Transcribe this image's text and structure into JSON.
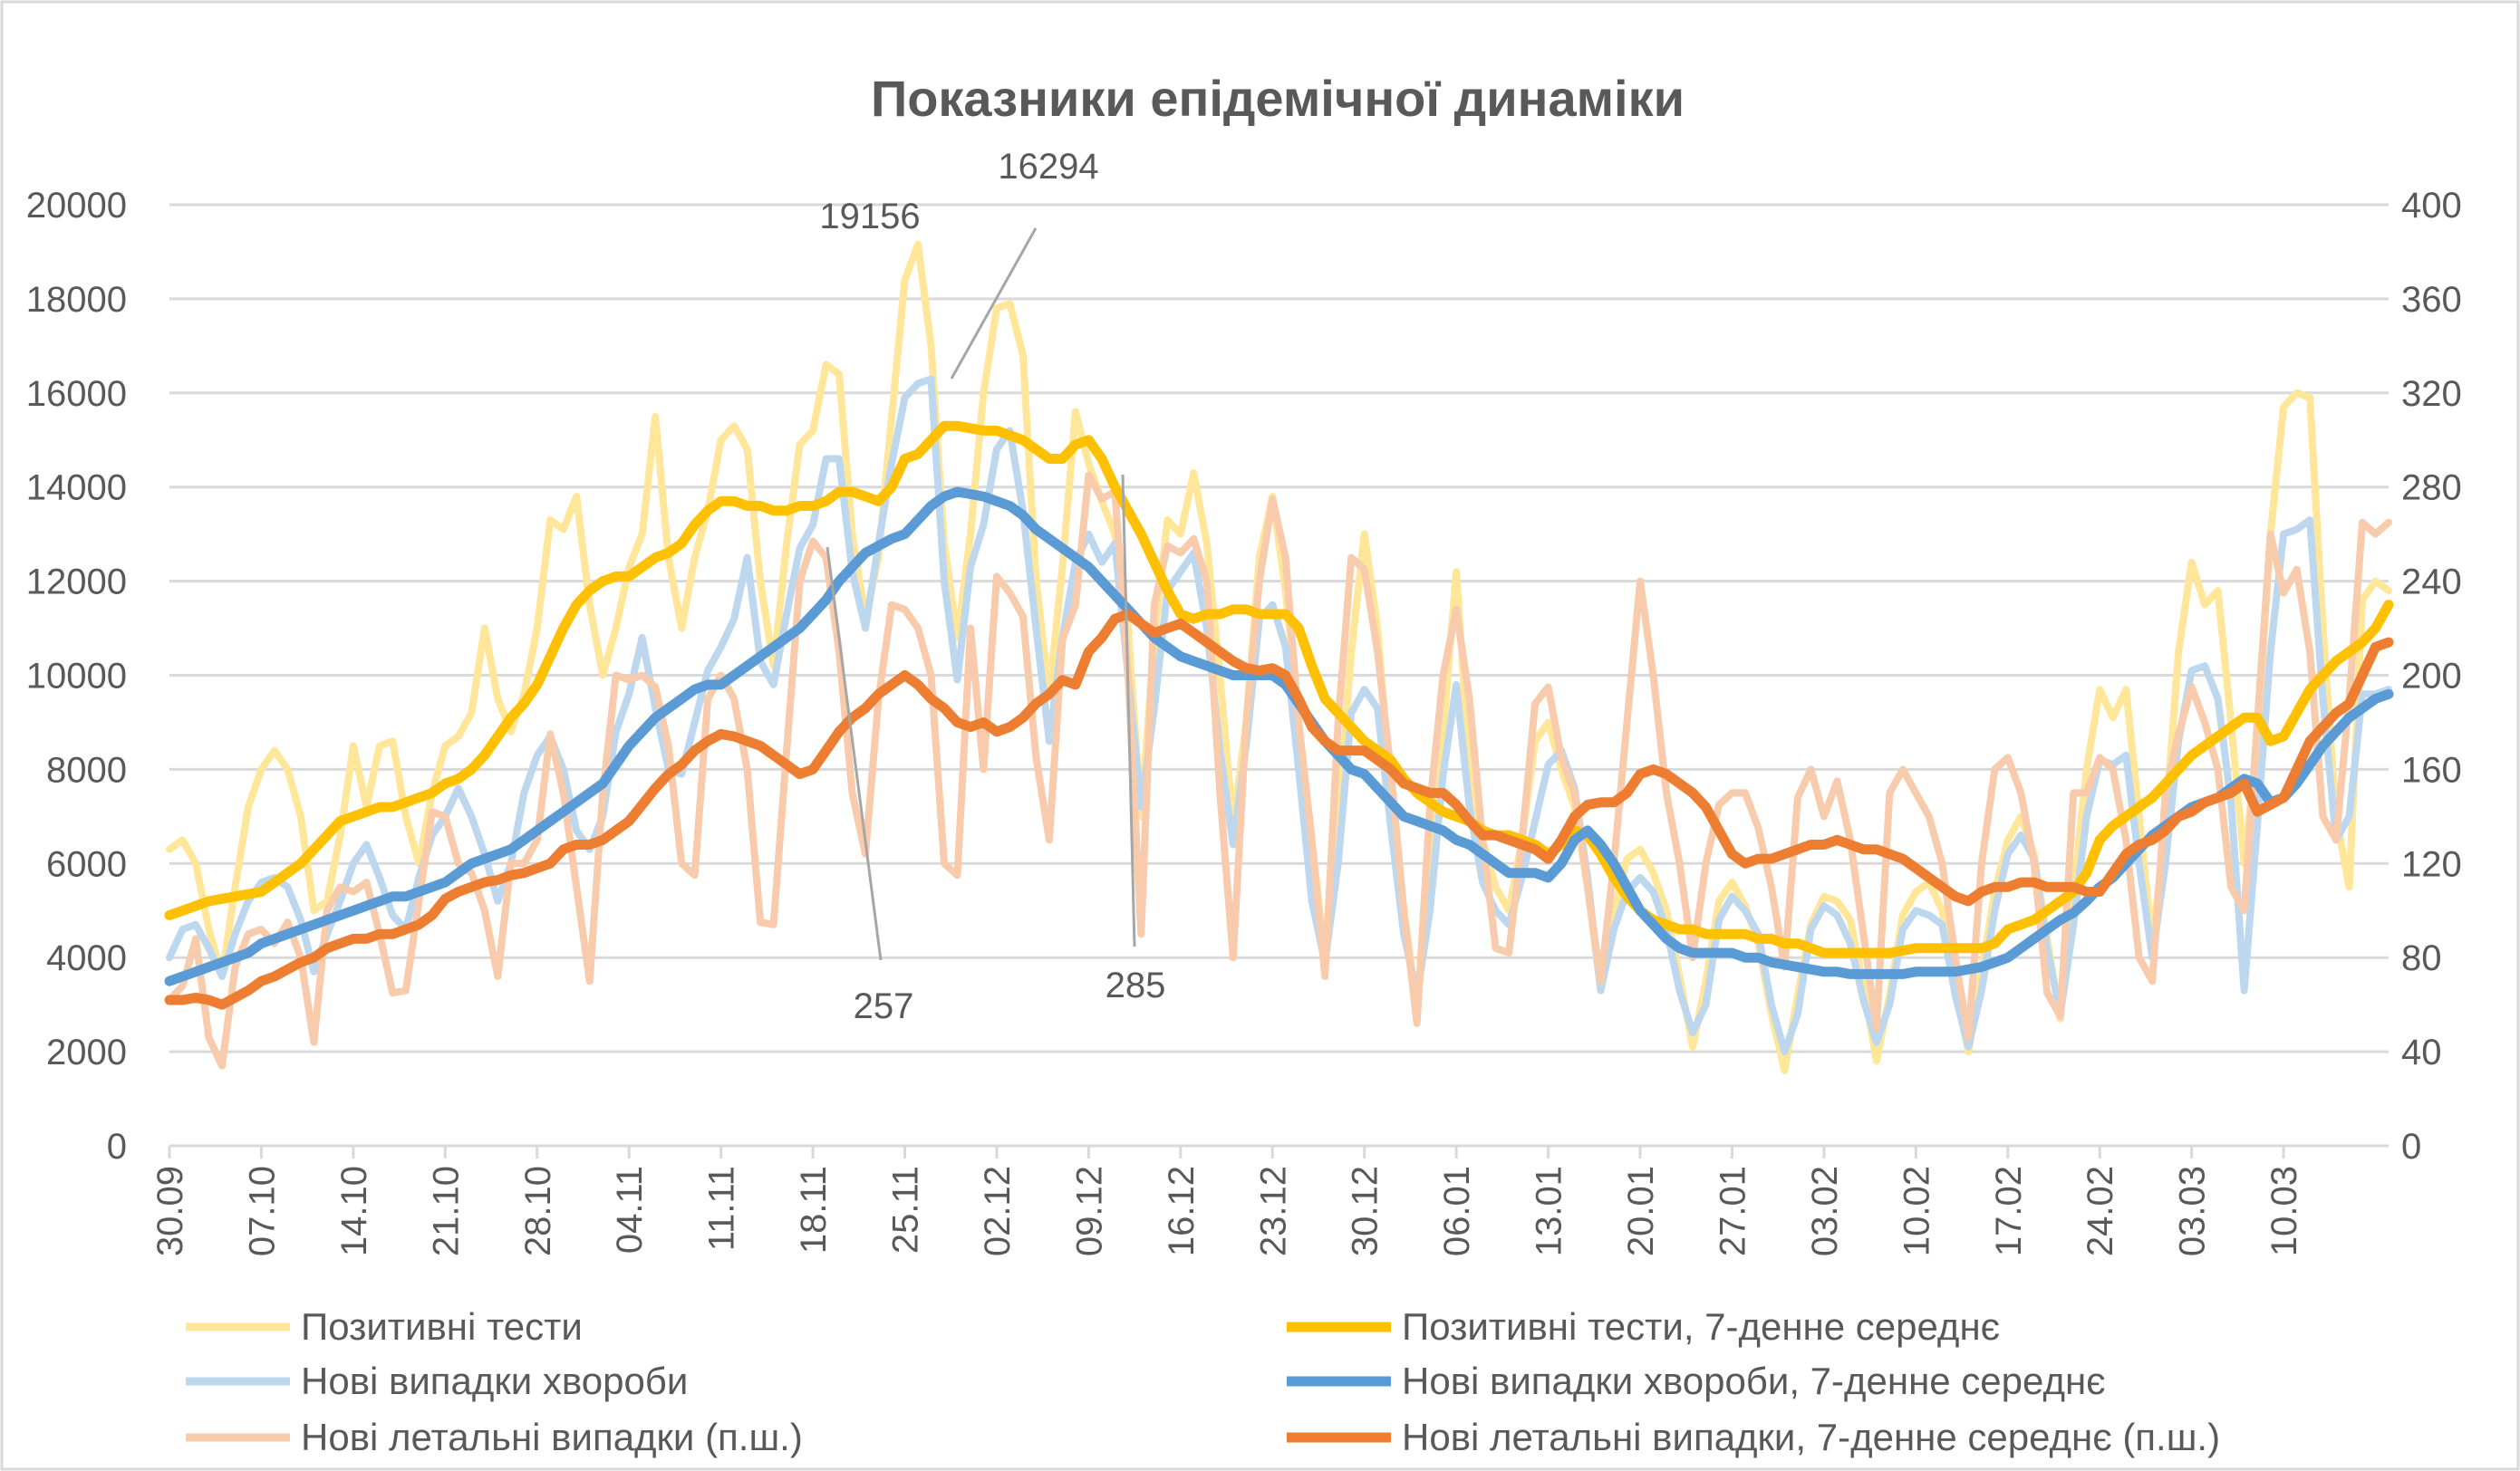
{
  "chart_data": {
    "type": "line",
    "title": "Показники епідемічної динаміки",
    "xlabel": "",
    "ylabel": "",
    "x_tick_labels": [
      "30.09",
      "07.10",
      "14.10",
      "21.10",
      "28.10",
      "04.11",
      "11.11",
      "18.11",
      "25.11",
      "02.12",
      "09.12",
      "16.12",
      "23.12",
      "30.12",
      "06.01",
      "13.01",
      "20.01",
      "27.01",
      "03.02",
      "10.02",
      "17.02",
      "24.02",
      "03.03",
      "10.03"
    ],
    "ylim": [
      0,
      20000
    ],
    "y_ticks": [
      0,
      2000,
      4000,
      6000,
      8000,
      10000,
      12000,
      14000,
      16000,
      18000,
      20000
    ],
    "y2lim": [
      0,
      400
    ],
    "y2_ticks": [
      0,
      40,
      80,
      120,
      160,
      200,
      240,
      280,
      320,
      360,
      400
    ],
    "grid": true,
    "legend_position": "bottom",
    "series": [
      {
        "name": "Позитивні тести",
        "axis": "left",
        "color": "#FFE699",
        "style": "thin",
        "values": [
          6300,
          6500,
          6000,
          4600,
          3600,
          5500,
          7200,
          8000,
          8400,
          8000,
          7000,
          5000,
          5200,
          6600,
          8500,
          7200,
          8500,
          8600,
          7000,
          6000,
          7500,
          8500,
          8700,
          9200,
          11000,
          9500,
          8800,
          9600,
          11000,
          13300,
          13100,
          13800,
          11500,
          10000,
          11000,
          12300,
          13000,
          15500,
          12500,
          11000,
          12500,
          13500,
          15000,
          15300,
          14800,
          12000,
          10200,
          12800,
          14900,
          15200,
          16600,
          16400,
          13000,
          11200,
          12500,
          15500,
          18400,
          19156,
          17000,
          12800,
          10800,
          13000,
          16000,
          17800,
          17900,
          16800,
          12000,
          9600,
          12300,
          15600,
          14500,
          13700,
          13000,
          11000,
          7000,
          10800,
          13300,
          13000,
          14300,
          12800,
          10000,
          6800,
          9000,
          12500,
          13800,
          11800,
          9000,
          6500,
          4000,
          6800,
          10500,
          13000,
          11000,
          7600,
          5000,
          3000,
          5500,
          8800,
          12200,
          8000,
          6500,
          5500,
          5000,
          6500,
          8600,
          9000,
          8000,
          7200,
          5500,
          3300,
          5000,
          6100,
          6300,
          5800,
          5000,
          3600,
          2100,
          3500,
          5200,
          5600,
          5100,
          4300,
          2800,
          1600,
          3200,
          4700,
          5300,
          5200,
          4800,
          3400,
          1800,
          3200,
          4900,
          5400,
          5600,
          5000,
          3300,
          2000,
          3700,
          5400,
          6500,
          7000,
          6200,
          4400,
          2700,
          5400,
          8000,
          9700,
          9100,
          9700,
          7000,
          4300,
          6800,
          10500,
          12400,
          11500,
          11800,
          9000,
          6000,
          8600,
          13000,
          15700,
          16000,
          15900,
          11000,
          7000,
          5500,
          11600,
          12000,
          11800
        ]
      },
      {
        "name": "Позитивні тести, 7-денне середнє",
        "axis": "left",
        "color": "#FFC000",
        "style": "thick",
        "values": [
          4900,
          5000,
          5100,
          5200,
          5250,
          5300,
          5350,
          5400,
          5600,
          5800,
          6000,
          6300,
          6600,
          6900,
          7000,
          7100,
          7200,
          7200,
          7300,
          7400,
          7500,
          7700,
          7800,
          8000,
          8300,
          8700,
          9100,
          9400,
          9800,
          10400,
          11000,
          11500,
          11800,
          12000,
          12100,
          12100,
          12300,
          12500,
          12600,
          12800,
          13200,
          13500,
          13700,
          13700,
          13600,
          13600,
          13500,
          13500,
          13600,
          13600,
          13700,
          13900,
          13900,
          13800,
          13700,
          14000,
          14600,
          14700,
          15000,
          15300,
          15300,
          15250,
          15200,
          15200,
          15100,
          15000,
          14800,
          14600,
          14600,
          14900,
          15000,
          14600,
          14000,
          13500,
          13000,
          12400,
          11800,
          11300,
          11200,
          11300,
          11300,
          11400,
          11400,
          11300,
          11300,
          11300,
          11000,
          10200,
          9500,
          9200,
          8900,
          8600,
          8400,
          8200,
          7800,
          7500,
          7300,
          7100,
          7000,
          6900,
          6700,
          6600,
          6600,
          6500,
          6400,
          6200,
          6400,
          6700,
          6600,
          6200,
          5700,
          5300,
          5000,
          4800,
          4700,
          4600,
          4600,
          4500,
          4500,
          4500,
          4500,
          4400,
          4400,
          4300,
          4300,
          4200,
          4100,
          4100,
          4100,
          4100,
          4100,
          4100,
          4150,
          4200,
          4200,
          4200,
          4200,
          4200,
          4200,
          4300,
          4600,
          4700,
          4800,
          5000,
          5200,
          5400,
          5800,
          6500,
          6800,
          7000,
          7200,
          7400,
          7700,
          8000,
          8300,
          8500,
          8700,
          8900,
          9100,
          9100,
          8600,
          8700,
          9200,
          9700,
          10000,
          10300,
          10500,
          10700,
          11000,
          11500
        ]
      },
      {
        "name": "Нові випадки хвороби",
        "axis": "left",
        "color": "#BDD7EE",
        "style": "thin",
        "values": [
          4000,
          4600,
          4700,
          4200,
          3600,
          4500,
          5200,
          5600,
          5700,
          5500,
          4800,
          3700,
          4500,
          5200,
          6000,
          6400,
          5700,
          4900,
          4600,
          5700,
          6600,
          7000,
          7600,
          7000,
          6200,
          5200,
          6000,
          7500,
          8300,
          8700,
          8000,
          6700,
          6300,
          7000,
          8800,
          9600,
          10800,
          9300,
          8000,
          7900,
          9000,
          10100,
          10600,
          11200,
          12500,
          10300,
          9800,
          11300,
          12700,
          13200,
          14600,
          14600,
          12200,
          11000,
          12800,
          14500,
          15900,
          16200,
          16294,
          12000,
          9900,
          12300,
          13200,
          14800,
          15200,
          13500,
          11000,
          8600,
          10800,
          12400,
          13000,
          12400,
          12800,
          10000,
          7200,
          9300,
          11800,
          12200,
          12600,
          11000,
          8400,
          6400,
          8500,
          11200,
          11500,
          10600,
          8000,
          5200,
          3900,
          6000,
          9200,
          9700,
          9300,
          6800,
          4500,
          3200,
          5000,
          7900,
          9800,
          7200,
          5600,
          5000,
          4700,
          5700,
          6900,
          8100,
          8400,
          7600,
          5700,
          3300,
          4600,
          5400,
          5700,
          5400,
          4600,
          3300,
          2400,
          3000,
          4800,
          5300,
          5000,
          4500,
          3000,
          2000,
          2800,
          4600,
          5100,
          4900,
          4300,
          3100,
          2200,
          3000,
          4600,
          5000,
          4900,
          4700,
          3200,
          2100,
          3300,
          5000,
          6200,
          6600,
          6100,
          4200,
          2800,
          4700,
          7000,
          8200,
          8100,
          8300,
          6000,
          4000,
          6000,
          8600,
          10100,
          10200,
          9500,
          7300,
          3300,
          6800,
          10500,
          13000,
          13100,
          13300,
          9500,
          6500,
          7000,
          9600,
          9600,
          9700
        ]
      },
      {
        "name": "Нові випадки хвороби, 7-денне середнє",
        "axis": "left",
        "color": "#5B9BD5",
        "style": "thick",
        "values": [
          3500,
          3600,
          3700,
          3800,
          3900,
          4000,
          4100,
          4300,
          4400,
          4500,
          4600,
          4700,
          4800,
          4900,
          5000,
          5100,
          5200,
          5300,
          5300,
          5400,
          5500,
          5600,
          5800,
          6000,
          6100,
          6200,
          6300,
          6500,
          6700,
          6900,
          7100,
          7300,
          7500,
          7700,
          8100,
          8500,
          8800,
          9100,
          9300,
          9500,
          9700,
          9800,
          9800,
          10000,
          10200,
          10400,
          10600,
          10800,
          11000,
          11300,
          11600,
          12000,
          12300,
          12600,
          12750,
          12900,
          13000,
          13300,
          13600,
          13800,
          13900,
          13850,
          13800,
          13700,
          13600,
          13400,
          13100,
          12900,
          12700,
          12500,
          12300,
          12000,
          11700,
          11400,
          11100,
          10800,
          10600,
          10400,
          10300,
          10200,
          10100,
          10000,
          10000,
          10000,
          10000,
          9800,
          9400,
          9000,
          8600,
          8300,
          8000,
          7900,
          7600,
          7300,
          7000,
          6900,
          6800,
          6700,
          6500,
          6400,
          6200,
          6000,
          5800,
          5800,
          5800,
          5700,
          6000,
          6500,
          6700,
          6400,
          6000,
          5500,
          5000,
          4700,
          4400,
          4200,
          4100,
          4100,
          4100,
          4100,
          4000,
          4000,
          3900,
          3850,
          3800,
          3750,
          3700,
          3700,
          3650,
          3650,
          3650,
          3650,
          3650,
          3700,
          3700,
          3700,
          3700,
          3750,
          3800,
          3900,
          4000,
          4200,
          4400,
          4600,
          4800,
          4950,
          5200,
          5500,
          5700,
          6000,
          6300,
          6600,
          6800,
          7000,
          7200,
          7300,
          7400,
          7600,
          7800,
          7700,
          7300,
          7400,
          7700,
          8100,
          8500,
          8800,
          9100,
          9300,
          9500,
          9600
        ]
      },
      {
        "name": "Нові летальні випадки (п.ш.)",
        "axis": "right",
        "color": "#F8CBAD",
        "style": "thin",
        "values": [
          62,
          68,
          88,
          46,
          34,
          76,
          90,
          92,
          86,
          95,
          80,
          44,
          100,
          110,
          108,
          112,
          90,
          65,
          66,
          104,
          142,
          140,
          120,
          116,
          100,
          72,
          120,
          120,
          130,
          175,
          150,
          110,
          70,
          150,
          200,
          198,
          200,
          195,
          170,
          120,
          115,
          190,
          200,
          190,
          160,
          95,
          94,
          168,
          240,
          257,
          250,
          210,
          150,
          124,
          190,
          230,
          228,
          220,
          200,
          120,
          115,
          220,
          160,
          242,
          235,
          225,
          165,
          130,
          215,
          230,
          285,
          275,
          278,
          200,
          90,
          230,
          255,
          252,
          258,
          240,
          150,
          80,
          180,
          240,
          275,
          250,
          180,
          130,
          72,
          180,
          250,
          245,
          210,
          160,
          100,
          52,
          145,
          200,
          228,
          190,
          130,
          84,
          82,
          130,
          188,
          195,
          165,
          150,
          110,
          70,
          120,
          180,
          240,
          200,
          150,
          120,
          80,
          120,
          145,
          150,
          150,
          135,
          110,
          76,
          148,
          160,
          140,
          155,
          130,
          90,
          50,
          150,
          160,
          150,
          140,
          120,
          80,
          46,
          120,
          160,
          165,
          150,
          120,
          65,
          55,
          150,
          150,
          165,
          160,
          130,
          80,
          70,
          150,
          175,
          195,
          180,
          160,
          110,
          100,
          180,
          260,
          235,
          245,
          210,
          140,
          130,
          190,
          265,
          260,
          265
        ]
      },
      {
        "name": "Нові летальні випадки, 7-денне середнє (п.ш.)",
        "axis": "right",
        "color": "#ED7D31",
        "style": "thick",
        "values": [
          62,
          62,
          63,
          62,
          60,
          63,
          66,
          70,
          72,
          75,
          78,
          80,
          84,
          86,
          88,
          88,
          90,
          90,
          92,
          94,
          98,
          105,
          108,
          110,
          112,
          113,
          115,
          116,
          118,
          120,
          126,
          128,
          128,
          130,
          134,
          138,
          145,
          152,
          158,
          162,
          168,
          172,
          175,
          174,
          172,
          170,
          166,
          162,
          158,
          160,
          168,
          176,
          182,
          186,
          192,
          196,
          200,
          196,
          190,
          186,
          180,
          178,
          180,
          176,
          178,
          182,
          188,
          192,
          198,
          196,
          210,
          216,
          224,
          226,
          222,
          218,
          220,
          222,
          218,
          214,
          210,
          206,
          203,
          202,
          203,
          200,
          190,
          178,
          172,
          168,
          168,
          168,
          164,
          160,
          154,
          152,
          150,
          150,
          145,
          138,
          132,
          132,
          130,
          128,
          126,
          122,
          130,
          140,
          145,
          146,
          146,
          150,
          158,
          160,
          158,
          154,
          150,
          144,
          134,
          124,
          120,
          122,
          122,
          124,
          126,
          128,
          128,
          130,
          128,
          126,
          126,
          124,
          122,
          118,
          114,
          110,
          106,
          104,
          108,
          110,
          110,
          112,
          112,
          110,
          110,
          110,
          108,
          108,
          116,
          124,
          128,
          130,
          134,
          140,
          142,
          146,
          148,
          150,
          154,
          142,
          145,
          148,
          160,
          172,
          178,
          184,
          188,
          200,
          212,
          214
        ]
      }
    ],
    "annotations": [
      "19156",
      "16294",
      "257",
      "285"
    ]
  }
}
